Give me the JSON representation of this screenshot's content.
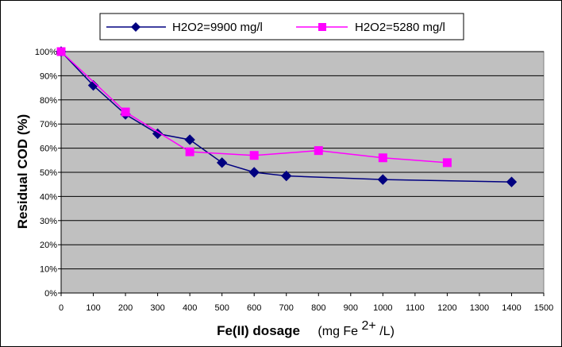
{
  "chart_data": {
    "type": "line",
    "x_ticks": [
      0,
      100,
      200,
      300,
      400,
      500,
      600,
      700,
      800,
      900,
      1000,
      1100,
      1200,
      1300,
      1400,
      1500
    ],
    "y_ticks": [
      "0%",
      "10%",
      "20%",
      "30%",
      "40%",
      "50%",
      "60%",
      "70%",
      "80%",
      "90%",
      "100%"
    ],
    "xlim": [
      0,
      1500
    ],
    "ylim": [
      0,
      100
    ],
    "grid": "horizontal",
    "plot_background": "#c0c0c0",
    "legend_position": "top",
    "ylabel": "Residual COD (%)",
    "xlabel": "Fe(II) dosage",
    "xlabel_unit_pre": "(mg Fe",
    "xlabel_unit_sup": "2+",
    "xlabel_unit_post": "/L)",
    "series": [
      {
        "name": "H2O2=9900 mg/l",
        "color": "#000080",
        "marker": "diamond",
        "x": [
          0,
          100,
          200,
          300,
          400,
          500,
          600,
          700,
          1000,
          1400
        ],
        "y": [
          100,
          86,
          74,
          66,
          63.5,
          54,
          50,
          48.5,
          47,
          46
        ]
      },
      {
        "name": "H2O2=5280 mg/l",
        "color": "#ff00ff",
        "marker": "square",
        "x": [
          0,
          200,
          400,
          600,
          800,
          1000,
          1200
        ],
        "y": [
          100,
          75,
          58.5,
          57,
          59,
          56,
          54
        ]
      }
    ]
  }
}
